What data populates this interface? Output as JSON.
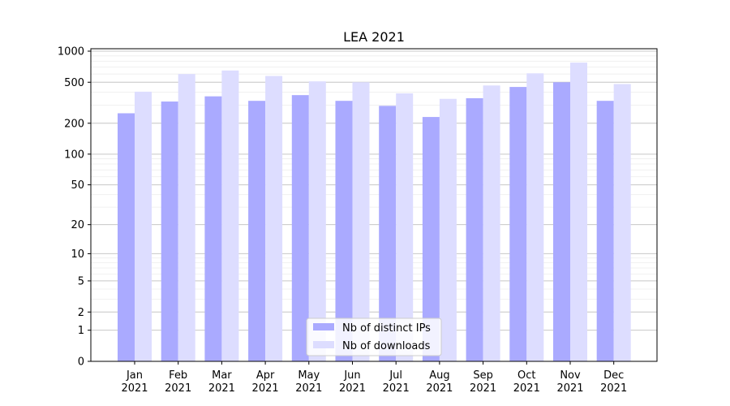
{
  "chart_data": {
    "type": "bar",
    "title": "LEA 2021",
    "xlabel": "",
    "ylabel": "",
    "y_scale": "log(1+y)",
    "ylim": [
      0,
      1000
    ],
    "yticks": [
      0,
      1,
      2,
      5,
      10,
      20,
      50,
      100,
      200,
      500,
      1000
    ],
    "ytick_labels": [
      "0",
      "1",
      "2",
      "5",
      "10",
      "20",
      "50",
      "100",
      "200",
      "500",
      "1000"
    ],
    "categories": [
      [
        "Jan",
        "2021"
      ],
      [
        "Feb",
        "2021"
      ],
      [
        "Mar",
        "2021"
      ],
      [
        "Apr",
        "2021"
      ],
      [
        "May",
        "2021"
      ],
      [
        "Jun",
        "2021"
      ],
      [
        "Jul",
        "2021"
      ],
      [
        "Aug",
        "2021"
      ],
      [
        "Sep",
        "2021"
      ],
      [
        "Oct",
        "2021"
      ],
      [
        "Nov",
        "2021"
      ],
      [
        "Dec",
        "2021"
      ]
    ],
    "series": [
      {
        "name": "Nb of distinct IPs",
        "color": "#aaaaff",
        "values": [
          250,
          325,
          365,
          330,
          375,
          330,
          295,
          230,
          350,
          450,
          500,
          330
        ]
      },
      {
        "name": "Nb of downloads",
        "color": "#ddddff",
        "values": [
          405,
          600,
          650,
          575,
          510,
          500,
          390,
          345,
          465,
          610,
          775,
          480
        ]
      }
    ],
    "grid": true,
    "legend_position": "bottom-center"
  }
}
